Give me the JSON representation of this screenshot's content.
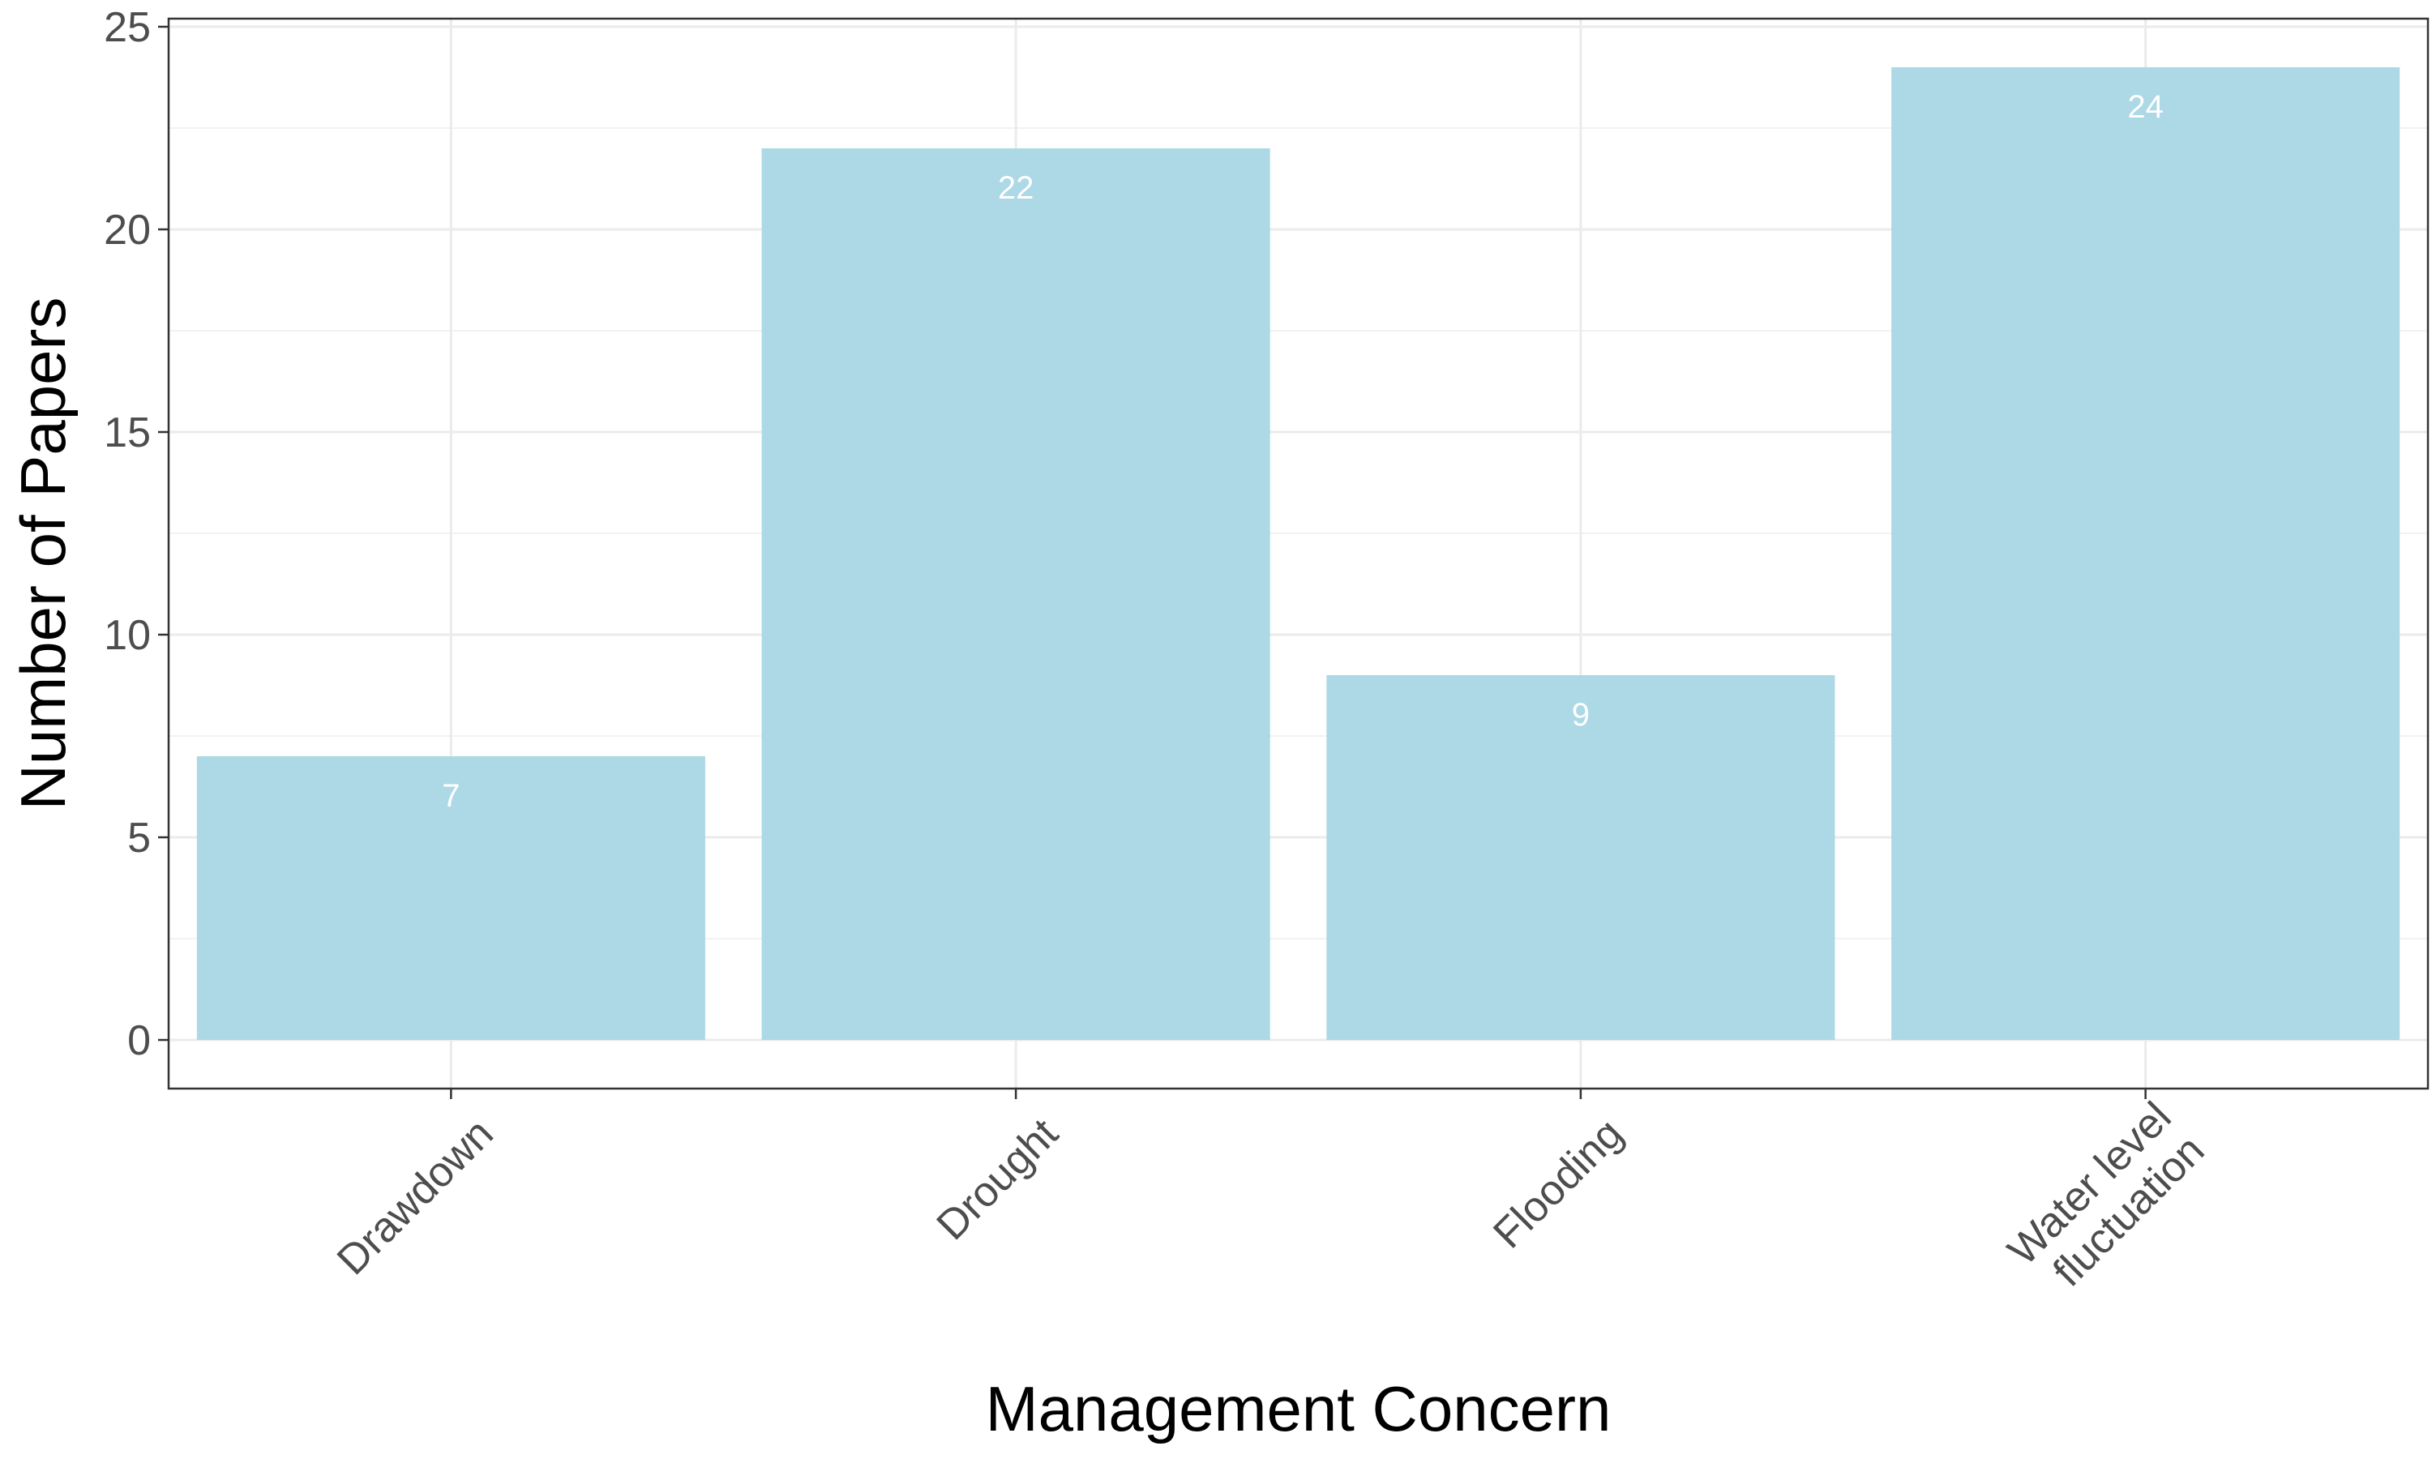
{
  "chart_data": {
    "type": "bar",
    "title": "",
    "xlabel": "Management Concern",
    "ylabel": "Number of Papers",
    "categories": [
      "Drawdown",
      "Drought",
      "Flooding",
      "Water level\nfluctuation"
    ],
    "values": [
      7,
      22,
      9,
      24
    ],
    "data_labels": [
      "7",
      "22",
      "9",
      "24"
    ],
    "ylim": [
      -1.2,
      25.2
    ],
    "yticks": [
      0,
      5,
      10,
      15,
      20,
      25
    ],
    "ytick_labels": [
      "0",
      "5",
      "10",
      "15",
      "20",
      "25"
    ],
    "grid": true,
    "legend": "none",
    "colors": {
      "bar": "#ADD8E6",
      "grid_major": "#EBEBEB",
      "grid_minor": "#F2F2F2",
      "panel_border": "#333333",
      "data_label": "#FFFFFF"
    }
  }
}
